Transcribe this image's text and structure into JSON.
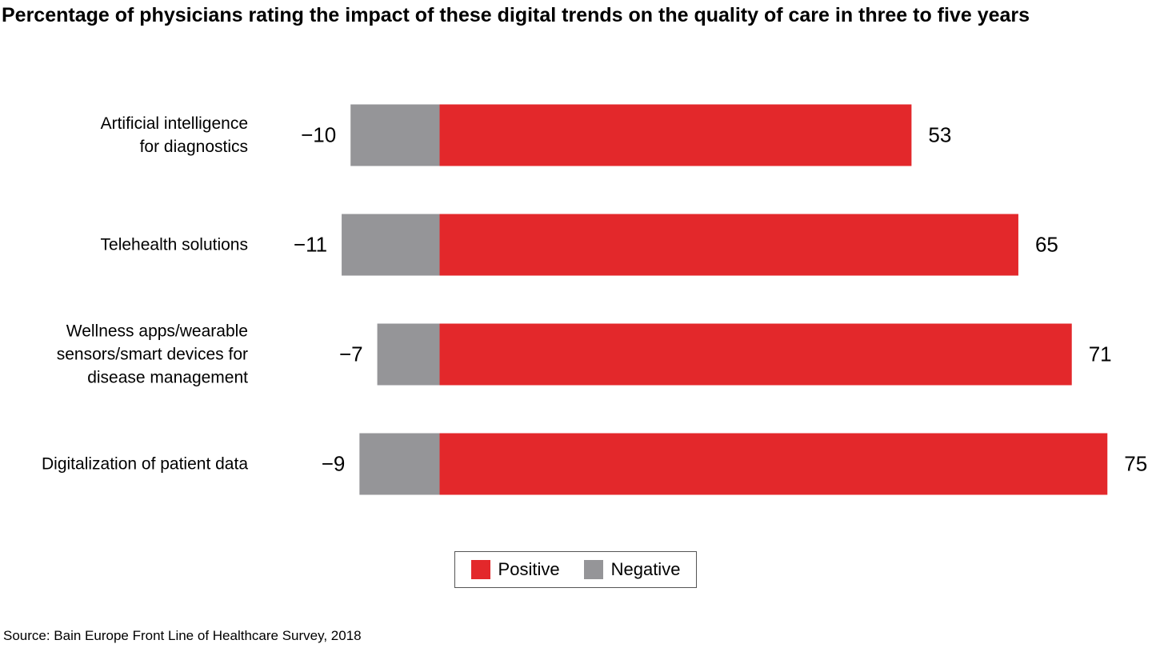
{
  "chart_data": {
    "type": "diverging-bar",
    "title": "Percentage of physicians rating the impact of these digital trends on the quality of care in three to five years",
    "categories": [
      "Artificial intelligence\nfor diagnostics",
      "Telehealth solutions",
      "Wellness apps/wearable\nsensors/smart devices for\ndisease management",
      "Digitalization of patient data"
    ],
    "series": [
      {
        "name": "Positive",
        "color": "#e3282b",
        "values": [
          53,
          65,
          71,
          75
        ]
      },
      {
        "name": "Negative",
        "color": "#959598",
        "values": [
          -10,
          -11,
          -7,
          -9
        ],
        "value_labels": [
          "−10",
          "−11",
          "−7",
          "−9"
        ]
      }
    ],
    "source": "Source: Bain Europe Front Line of Healthcare Survey, 2018"
  }
}
